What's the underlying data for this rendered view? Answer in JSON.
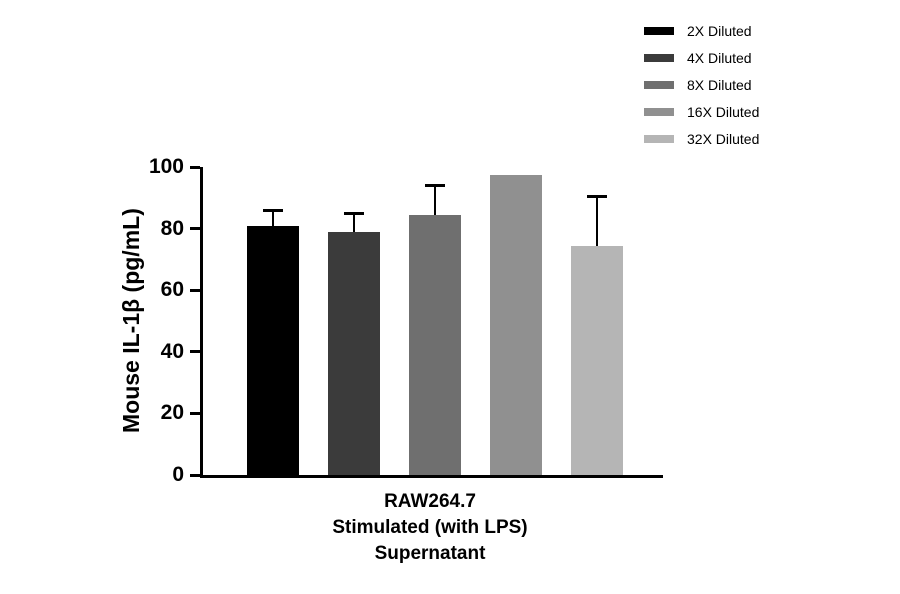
{
  "chart_data": {
    "type": "bar",
    "title": "",
    "ylabel": "Mouse IL-1β (pg/mL)",
    "xlabel": "RAW264.7 Stimulated (with LPS) Supernatant",
    "ylim": [
      0,
      100
    ],
    "yticks": [
      0,
      20,
      40,
      60,
      80,
      100
    ],
    "grid": false,
    "legend_position": "top-right",
    "categories": [
      "RAW264.7 Stimulated (with LPS) Supernatant"
    ],
    "series": [
      {
        "name": "2X Diluted",
        "value": 81,
        "error_up": 4.5,
        "color": "#000000"
      },
      {
        "name": "4X Diluted",
        "value": 79,
        "error_up": 5.5,
        "color": "#3b3b3b"
      },
      {
        "name": "8X Diluted",
        "value": 84.5,
        "error_up": 9,
        "color": "#6f6f6f"
      },
      {
        "name": "16X Diluted",
        "value": 97.5,
        "error_up": 0,
        "color": "#909090"
      },
      {
        "name": "32X Diluted",
        "value": 74.5,
        "error_up": 15.5,
        "color": "#b5b5b5"
      }
    ]
  },
  "xaxis_label_lines": [
    "RAW264.7",
    "Stimulated (with LPS)",
    "Supernatant"
  ]
}
